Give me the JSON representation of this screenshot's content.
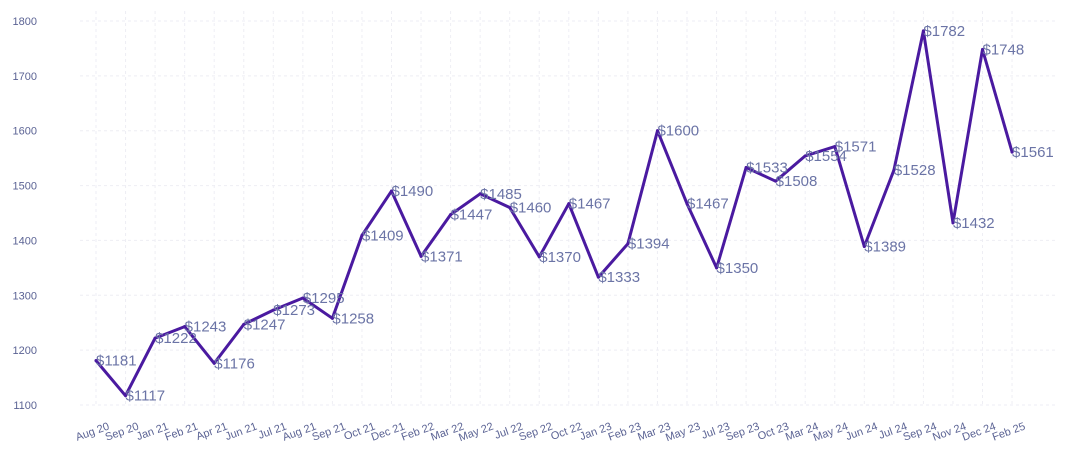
{
  "chart_data": {
    "type": "line",
    "title": "",
    "xlabel": "",
    "ylabel": "",
    "ylim": [
      1100,
      1800
    ],
    "yticks": [
      1100,
      1200,
      1300,
      1400,
      1500,
      1600,
      1700,
      1800
    ],
    "grid": true,
    "line_color": "#4a1aa0",
    "label_prefix": "$",
    "categories": [
      "Aug 20",
      "Sep 20",
      "Jan 21",
      "Feb 21",
      "Apr 21",
      "Jun 21",
      "Jul 21",
      "Aug 21",
      "Sep 21",
      "Oct 21",
      "Dec 21",
      "Feb 22",
      "Mar 22",
      "May 22",
      "Jul 22",
      "Sep 22",
      "Oct 22",
      "Jan 23",
      "Feb 23",
      "Mar 23",
      "May 23",
      "Jul 23",
      "Sep 23",
      "Oct 23",
      "Mar 24",
      "May 24",
      "Jun 24",
      "Jul 24",
      "Sep 24",
      "Nov 24",
      "Dec 24",
      "Feb 25"
    ],
    "values": [
      1181,
      1117,
      1222,
      1243,
      1176,
      1247,
      1273,
      1295,
      1258,
      1409,
      1490,
      1371,
      1447,
      1485,
      1460,
      1370,
      1467,
      1333,
      1394,
      1600,
      1467,
      1350,
      1533,
      1508,
      1554,
      1571,
      1389,
      1528,
      1782,
      1432,
      1748,
      1561
    ]
  }
}
